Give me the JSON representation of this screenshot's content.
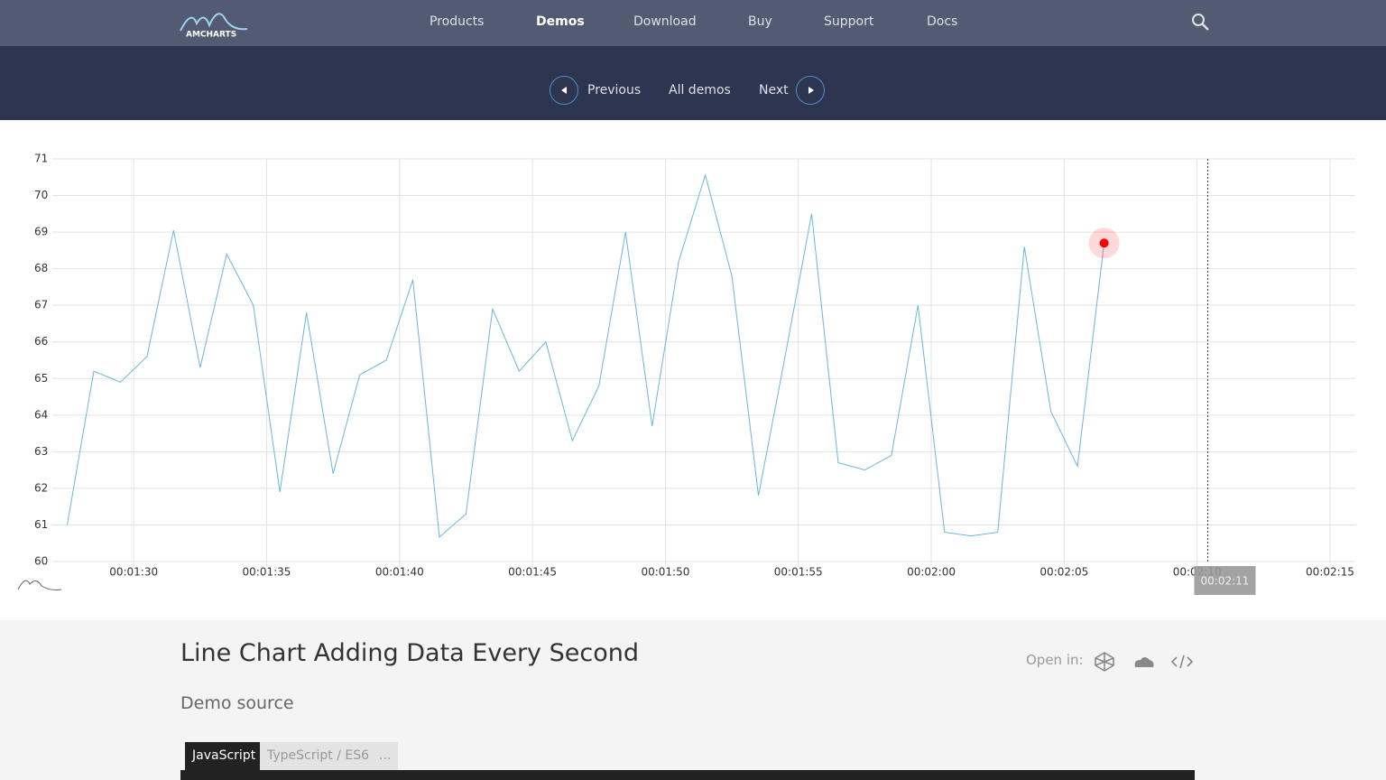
{
  "logo": "AMCHARTS",
  "nav": [
    "Products",
    "Demos",
    "Download",
    "Buy",
    "Support",
    "Docs"
  ],
  "subnav": {
    "previous": "Previous",
    "all": "All demos",
    "next": "Next"
  },
  "chart_data": {
    "type": "line",
    "x": [
      87.5,
      88.5,
      89.5,
      90.5,
      91.5,
      92.5,
      93.5,
      94.5,
      95.5,
      96.5,
      97.5,
      98.5,
      99.5,
      100.5,
      101.5,
      102.5,
      103.5,
      104.5,
      105.5,
      106.5,
      107.5,
      108.5,
      109.5,
      110.5,
      111.5,
      112.5,
      113.5,
      114.5,
      115.5,
      116.5,
      117.5,
      118.5,
      119.5,
      120.5,
      121.5,
      122.5,
      123.5,
      124.5,
      125.5,
      126.5
    ],
    "values": [
      61.0,
      65.2,
      64.9,
      65.6,
      69.05,
      65.3,
      68.4,
      67.0,
      61.9,
      66.8,
      62.4,
      65.1,
      65.5,
      67.7,
      60.67,
      61.3,
      66.9,
      65.2,
      66.0,
      63.3,
      64.8,
      69.0,
      63.7,
      68.2,
      70.56,
      67.8,
      61.8,
      65.6,
      69.5,
      62.7,
      62.5,
      62.9,
      67.0,
      60.8,
      60.7,
      60.8,
      68.6,
      64.1,
      62.6,
      68.7
    ],
    "color": "#67b7dc",
    "bullet_color": "#ff0000",
    "xlim": [
      86.94,
      135.95
    ],
    "ylim": [
      60,
      71
    ],
    "xticks": [
      {
        "value": 90,
        "label": "00:01:30"
      },
      {
        "value": 95,
        "label": "00:01:35"
      },
      {
        "value": 100,
        "label": "00:01:40"
      },
      {
        "value": 105,
        "label": "00:01:45"
      },
      {
        "value": 110,
        "label": "00:01:50"
      },
      {
        "value": 115,
        "label": "00:01:55"
      },
      {
        "value": 120,
        "label": "00:02:00"
      },
      {
        "value": 125,
        "label": "00:02:05"
      },
      {
        "value": 130,
        "label": "00:02:10"
      },
      {
        "value": 135,
        "label": "00:02:15"
      }
    ],
    "yticks": [
      60,
      61,
      62,
      63,
      64,
      65,
      66,
      67,
      68,
      69,
      70,
      71
    ],
    "grid": true,
    "cursor": {
      "x": 130.4,
      "label": "00:02:11"
    }
  },
  "demo": {
    "title": "Line Chart Adding Data Every Second",
    "open_in": "Open in:",
    "source": "Demo source",
    "tabs": [
      "JavaScript",
      "TypeScript / ES6",
      "..."
    ]
  }
}
